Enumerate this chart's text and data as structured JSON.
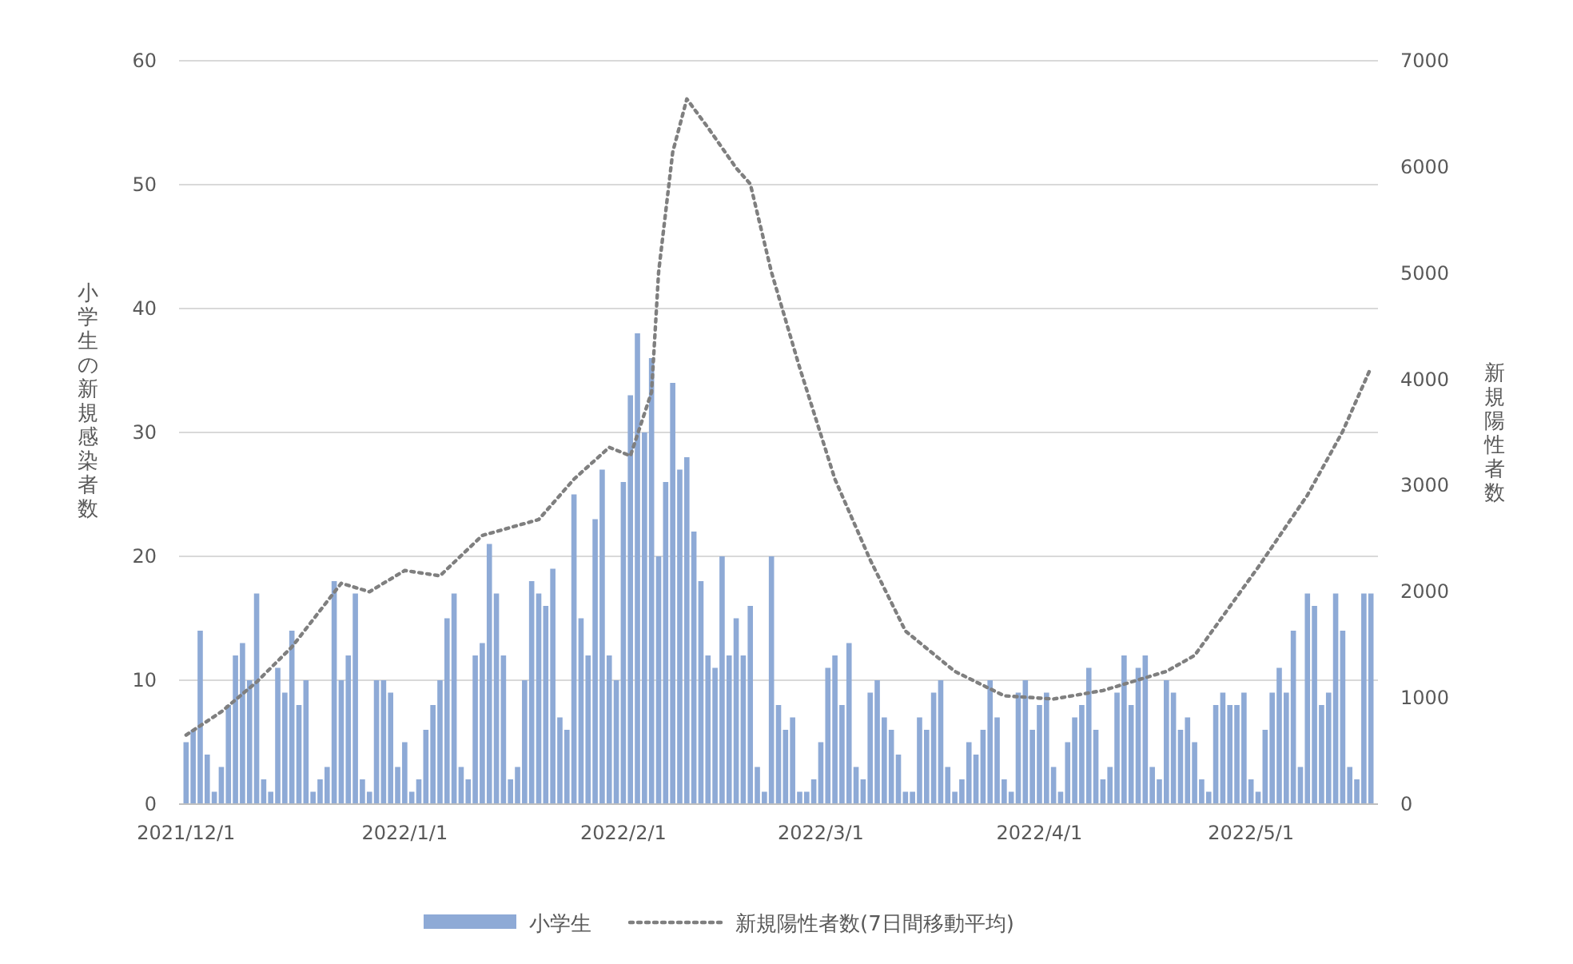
{
  "chart_data": {
    "type": "bar",
    "ylabel": "小学生の新規感染者数",
    "y2label": "新規陽性者数",
    "x": [
      "2021-12-01",
      "2021-12-02",
      "2021-12-03",
      "2021-12-04",
      "2021-12-05",
      "2021-12-06",
      "2021-12-07",
      "2021-12-08",
      "2021-12-09",
      "2021-12-10",
      "2021-12-11",
      "2021-12-12",
      "2021-12-13",
      "2021-12-14",
      "2021-12-15",
      "2021-12-16",
      "2021-12-17",
      "2021-12-18",
      "2021-12-19",
      "2021-12-20",
      "2021-12-21",
      "2021-12-22",
      "2021-12-23",
      "2021-12-24",
      "2021-12-25",
      "2021-12-26",
      "2021-12-27",
      "2021-12-28",
      "2021-12-29",
      "2021-12-30",
      "2021-12-31",
      "2022-01-01",
      "2022-01-02",
      "2022-01-03",
      "2022-01-04",
      "2022-01-05",
      "2022-01-06",
      "2022-01-07",
      "2022-01-08",
      "2022-01-09",
      "2022-01-10",
      "2022-01-11",
      "2022-01-12",
      "2022-01-13",
      "2022-01-14",
      "2022-01-15",
      "2022-01-16",
      "2022-01-17",
      "2022-01-18",
      "2022-01-19",
      "2022-01-20",
      "2022-01-21",
      "2022-01-22",
      "2022-01-23",
      "2022-01-24",
      "2022-01-25",
      "2022-01-26",
      "2022-01-27",
      "2022-01-28",
      "2022-01-29",
      "2022-01-30",
      "2022-01-31",
      "2022-02-01",
      "2022-02-02",
      "2022-02-03",
      "2022-02-04",
      "2022-02-05",
      "2022-02-06",
      "2022-02-07",
      "2022-02-08",
      "2022-02-09",
      "2022-02-10",
      "2022-02-11",
      "2022-02-12",
      "2022-02-13",
      "2022-02-14",
      "2022-02-15",
      "2022-02-16",
      "2022-02-17",
      "2022-02-18",
      "2022-02-19",
      "2022-02-20",
      "2022-02-21",
      "2022-02-22",
      "2022-02-23",
      "2022-02-24",
      "2022-02-25",
      "2022-02-26",
      "2022-02-27",
      "2022-02-28",
      "2022-03-01",
      "2022-03-02",
      "2022-03-03",
      "2022-03-04",
      "2022-03-05",
      "2022-03-06",
      "2022-03-07",
      "2022-03-08",
      "2022-03-09",
      "2022-03-10",
      "2022-03-11",
      "2022-03-12",
      "2022-03-13",
      "2022-03-14",
      "2022-03-15",
      "2022-03-16",
      "2022-03-17",
      "2022-03-18",
      "2022-03-19",
      "2022-03-20",
      "2022-03-21",
      "2022-03-22",
      "2022-03-23",
      "2022-03-24",
      "2022-03-25",
      "2022-03-26",
      "2022-03-27",
      "2022-03-28",
      "2022-03-29",
      "2022-03-30",
      "2022-03-31",
      "2022-04-01",
      "2022-04-02",
      "2022-04-03",
      "2022-04-04",
      "2022-04-05",
      "2022-04-06",
      "2022-04-07",
      "2022-04-08",
      "2022-04-09",
      "2022-04-10",
      "2022-04-11",
      "2022-04-12",
      "2022-04-13",
      "2022-04-14",
      "2022-04-15",
      "2022-04-16",
      "2022-04-17",
      "2022-04-18",
      "2022-04-19",
      "2022-04-20",
      "2022-04-21",
      "2022-04-22",
      "2022-04-23",
      "2022-04-24",
      "2022-04-25",
      "2022-04-26",
      "2022-04-27",
      "2022-04-28",
      "2022-04-29",
      "2022-04-30",
      "2022-05-01",
      "2022-05-02",
      "2022-05-03",
      "2022-05-04",
      "2022-05-05",
      "2022-05-06",
      "2022-05-07",
      "2022-05-08",
      "2022-05-09",
      "2022-05-10",
      "2022-05-11",
      "2022-05-12",
      "2022-05-13",
      "2022-05-14",
      "2022-05-15",
      "2022-05-16",
      "2022-05-17",
      "2022-05-18"
    ],
    "series": [
      {
        "name": "小学生",
        "color": "#8eaad6",
        "values": [
          5,
          6,
          14,
          4,
          1,
          3,
          8,
          12,
          13,
          10,
          17,
          2,
          1,
          11,
          9,
          14,
          8,
          10,
          1,
          2,
          3,
          18,
          10,
          12,
          17,
          2,
          1,
          10,
          10,
          9,
          3,
          5,
          1,
          2,
          6,
          8,
          10,
          15,
          17,
          3,
          2,
          12,
          13,
          21,
          17,
          12,
          2,
          3,
          10,
          18,
          17,
          16,
          19,
          7,
          6,
          25,
          15,
          12,
          23,
          27,
          12,
          10,
          26,
          33,
          38,
          30,
          36,
          20,
          26,
          34,
          27,
          28,
          22,
          18,
          12,
          11,
          20,
          12,
          15,
          12,
          16,
          3,
          1,
          20,
          8,
          6,
          7,
          1,
          1,
          2,
          5,
          11,
          12,
          8,
          13,
          3,
          2,
          9,
          10,
          7,
          6,
          4,
          1,
          1,
          7,
          6,
          9,
          10,
          3,
          1,
          2,
          5,
          4,
          6,
          10,
          7,
          2,
          1,
          9,
          10,
          6,
          8,
          9,
          3,
          1,
          5,
          7,
          8,
          11,
          6,
          2,
          3,
          9,
          12,
          8,
          11,
          12,
          3,
          2,
          10,
          9,
          6,
          7,
          5,
          2,
          1,
          8,
          9,
          8,
          8,
          9,
          2,
          1,
          6,
          9,
          11,
          9,
          14,
          3,
          17,
          16,
          8,
          9,
          17,
          14,
          3,
          2,
          17,
          17
        ]
      },
      {
        "name": "新規陽性者数(7日間移動平均)",
        "type": "line",
        "axis": "y2",
        "color": "#7f7f7f",
        "line_style": "dotted",
        "marker": "none",
        "x": [
          "2021-12-01",
          "2021-12-06",
          "2021-12-11",
          "2021-12-16",
          "2021-12-23",
          "2021-12-27",
          "2022-01-01",
          "2022-01-06",
          "2022-01-12",
          "2022-01-20",
          "2022-01-25",
          "2022-01-30",
          "2022-02-02",
          "2022-02-05",
          "2022-02-06",
          "2022-02-08",
          "2022-02-10",
          "2022-02-13",
          "2022-02-17",
          "2022-02-19",
          "2022-02-22",
          "2022-02-26",
          "2022-03-03",
          "2022-03-08",
          "2022-03-13",
          "2022-03-20",
          "2022-03-27",
          "2022-04-03",
          "2022-04-10",
          "2022-04-19",
          "2022-04-23",
          "2022-05-02",
          "2022-05-09",
          "2022-05-14",
          "2022-05-18"
        ],
        "values": [
          650,
          870,
          1150,
          1480,
          2080,
          2000,
          2200,
          2150,
          2530,
          2680,
          3060,
          3360,
          3280,
          3880,
          5010,
          6140,
          6640,
          6370,
          5990,
          5840,
          5010,
          4110,
          3060,
          2300,
          1630,
          1250,
          1020,
          990,
          1070,
          1250,
          1400,
          2230,
          2910,
          3510,
          4110
        ]
      }
    ],
    "xlim": [
      "2021-11-30",
      "2022-05-19"
    ],
    "xticks": [
      {
        "value": "2021-12-01",
        "label": "2021/12/1"
      },
      {
        "value": "2022-01-01",
        "label": "2022/1/1"
      },
      {
        "value": "2022-02-01",
        "label": "2022/2/1"
      },
      {
        "value": "2022-03-01",
        "label": "2022/3/1"
      },
      {
        "value": "2022-04-01",
        "label": "2022/4/1"
      },
      {
        "value": "2022-05-01",
        "label": "2022/5/1"
      }
    ],
    "ylim": [
      0,
      60
    ],
    "yticks": [
      0,
      10,
      20,
      30,
      40,
      50,
      60
    ],
    "y2lim": [
      0,
      7000
    ],
    "y2ticks": [
      0,
      1000,
      2000,
      3000,
      4000,
      5000,
      6000,
      7000
    ],
    "grid": "y",
    "legend": "bottom"
  }
}
